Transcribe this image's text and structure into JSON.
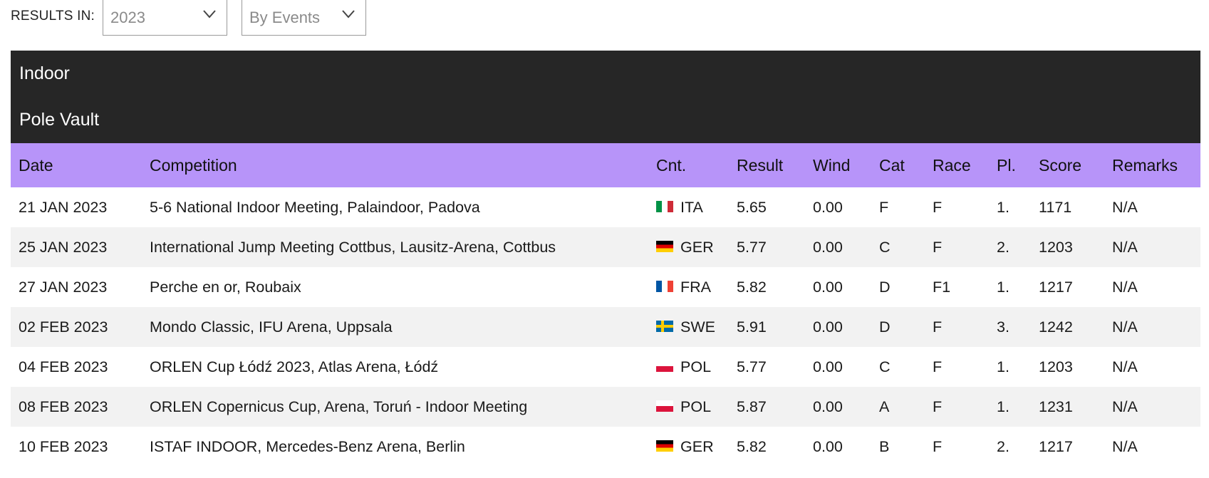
{
  "filters": {
    "label": "RESULTS IN:",
    "year": "2023",
    "mode": "By Events"
  },
  "section": {
    "environment": "Indoor",
    "discipline": "Pole Vault"
  },
  "table": {
    "headers": {
      "date": "Date",
      "competition": "Competition",
      "country": "Cnt.",
      "result": "Result",
      "wind": "Wind",
      "cat": "Cat",
      "race": "Race",
      "place": "Pl.",
      "score": "Score",
      "remarks": "Remarks"
    },
    "rows": [
      {
        "date": "21 JAN 2023",
        "competition": "5-6 National Indoor Meeting, Palaindoor, Padova",
        "country": "ITA",
        "flag": "flag-ita",
        "result": "5.65",
        "wind": "0.00",
        "cat": "F",
        "race": "F",
        "place": "1.",
        "score": "1171",
        "remarks": "N/A"
      },
      {
        "date": "25 JAN 2023",
        "competition": "International Jump Meeting Cottbus, Lausitz-Arena, Cottbus",
        "country": "GER",
        "flag": "flag-ger",
        "result": "5.77",
        "wind": "0.00",
        "cat": "C",
        "race": "F",
        "place": "2.",
        "score": "1203",
        "remarks": "N/A"
      },
      {
        "date": "27 JAN 2023",
        "competition": "Perche en or, Roubaix",
        "country": "FRA",
        "flag": "flag-fra",
        "result": "5.82",
        "wind": "0.00",
        "cat": "D",
        "race": "F1",
        "place": "1.",
        "score": "1217",
        "remarks": "N/A"
      },
      {
        "date": "02 FEB 2023",
        "competition": "Mondo Classic, IFU Arena, Uppsala",
        "country": "SWE",
        "flag": "flag-swe",
        "result": "5.91",
        "wind": "0.00",
        "cat": "D",
        "race": "F",
        "place": "3.",
        "score": "1242",
        "remarks": "N/A"
      },
      {
        "date": "04 FEB 2023",
        "competition": "ORLEN Cup Łódź 2023, Atlas Arena, Łódź",
        "country": "POL",
        "flag": "flag-pol",
        "result": "5.77",
        "wind": "0.00",
        "cat": "C",
        "race": "F",
        "place": "1.",
        "score": "1203",
        "remarks": "N/A"
      },
      {
        "date": "08 FEB 2023",
        "competition": "ORLEN Copernicus Cup, Arena, Toruń - Indoor Meeting",
        "country": "POL",
        "flag": "flag-pol",
        "result": "5.87",
        "wind": "0.00",
        "cat": "A",
        "race": "F",
        "place": "1.",
        "score": "1231",
        "remarks": "N/A"
      },
      {
        "date": "10 FEB 2023",
        "competition": "ISTAF INDOOR, Mercedes-Benz Arena, Berlin",
        "country": "GER",
        "flag": "flag-ger",
        "result": "5.82",
        "wind": "0.00",
        "cat": "B",
        "race": "F",
        "place": "2.",
        "score": "1217",
        "remarks": "N/A"
      }
    ]
  },
  "colors": {
    "header_bar": "#262626",
    "column_header": "#b794f9",
    "row_alt": "#f2f2f2"
  }
}
